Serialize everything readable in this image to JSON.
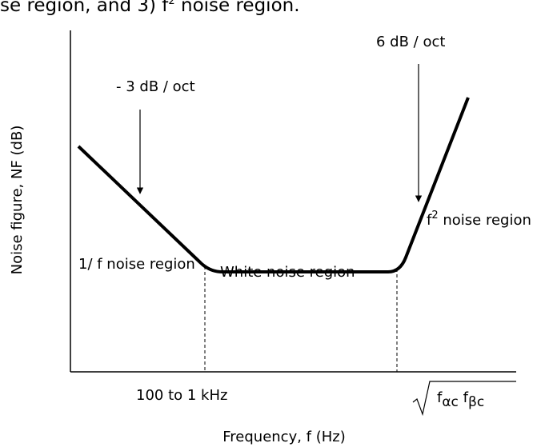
{
  "caption": {
    "before": "se region, and 3) f",
    "sup": "2",
    "after": " noise region."
  },
  "y_axis_label": "Noise figure, NF (dB)",
  "x_axis_label": "Frequency, f (Hz)",
  "slope_left": "- 3 dB / oct",
  "slope_right": "6 dB / oct",
  "region_right": {
    "base": "f",
    "sup": "2",
    "rest": " noise region"
  },
  "region_left": "1/ f noise region",
  "region_middle": "White noise region",
  "corner_left": "100 to 1 kHz",
  "corner_right": {
    "f1": "f",
    "sub1": "αc",
    "f2": " f",
    "sub2": "βc"
  }
}
